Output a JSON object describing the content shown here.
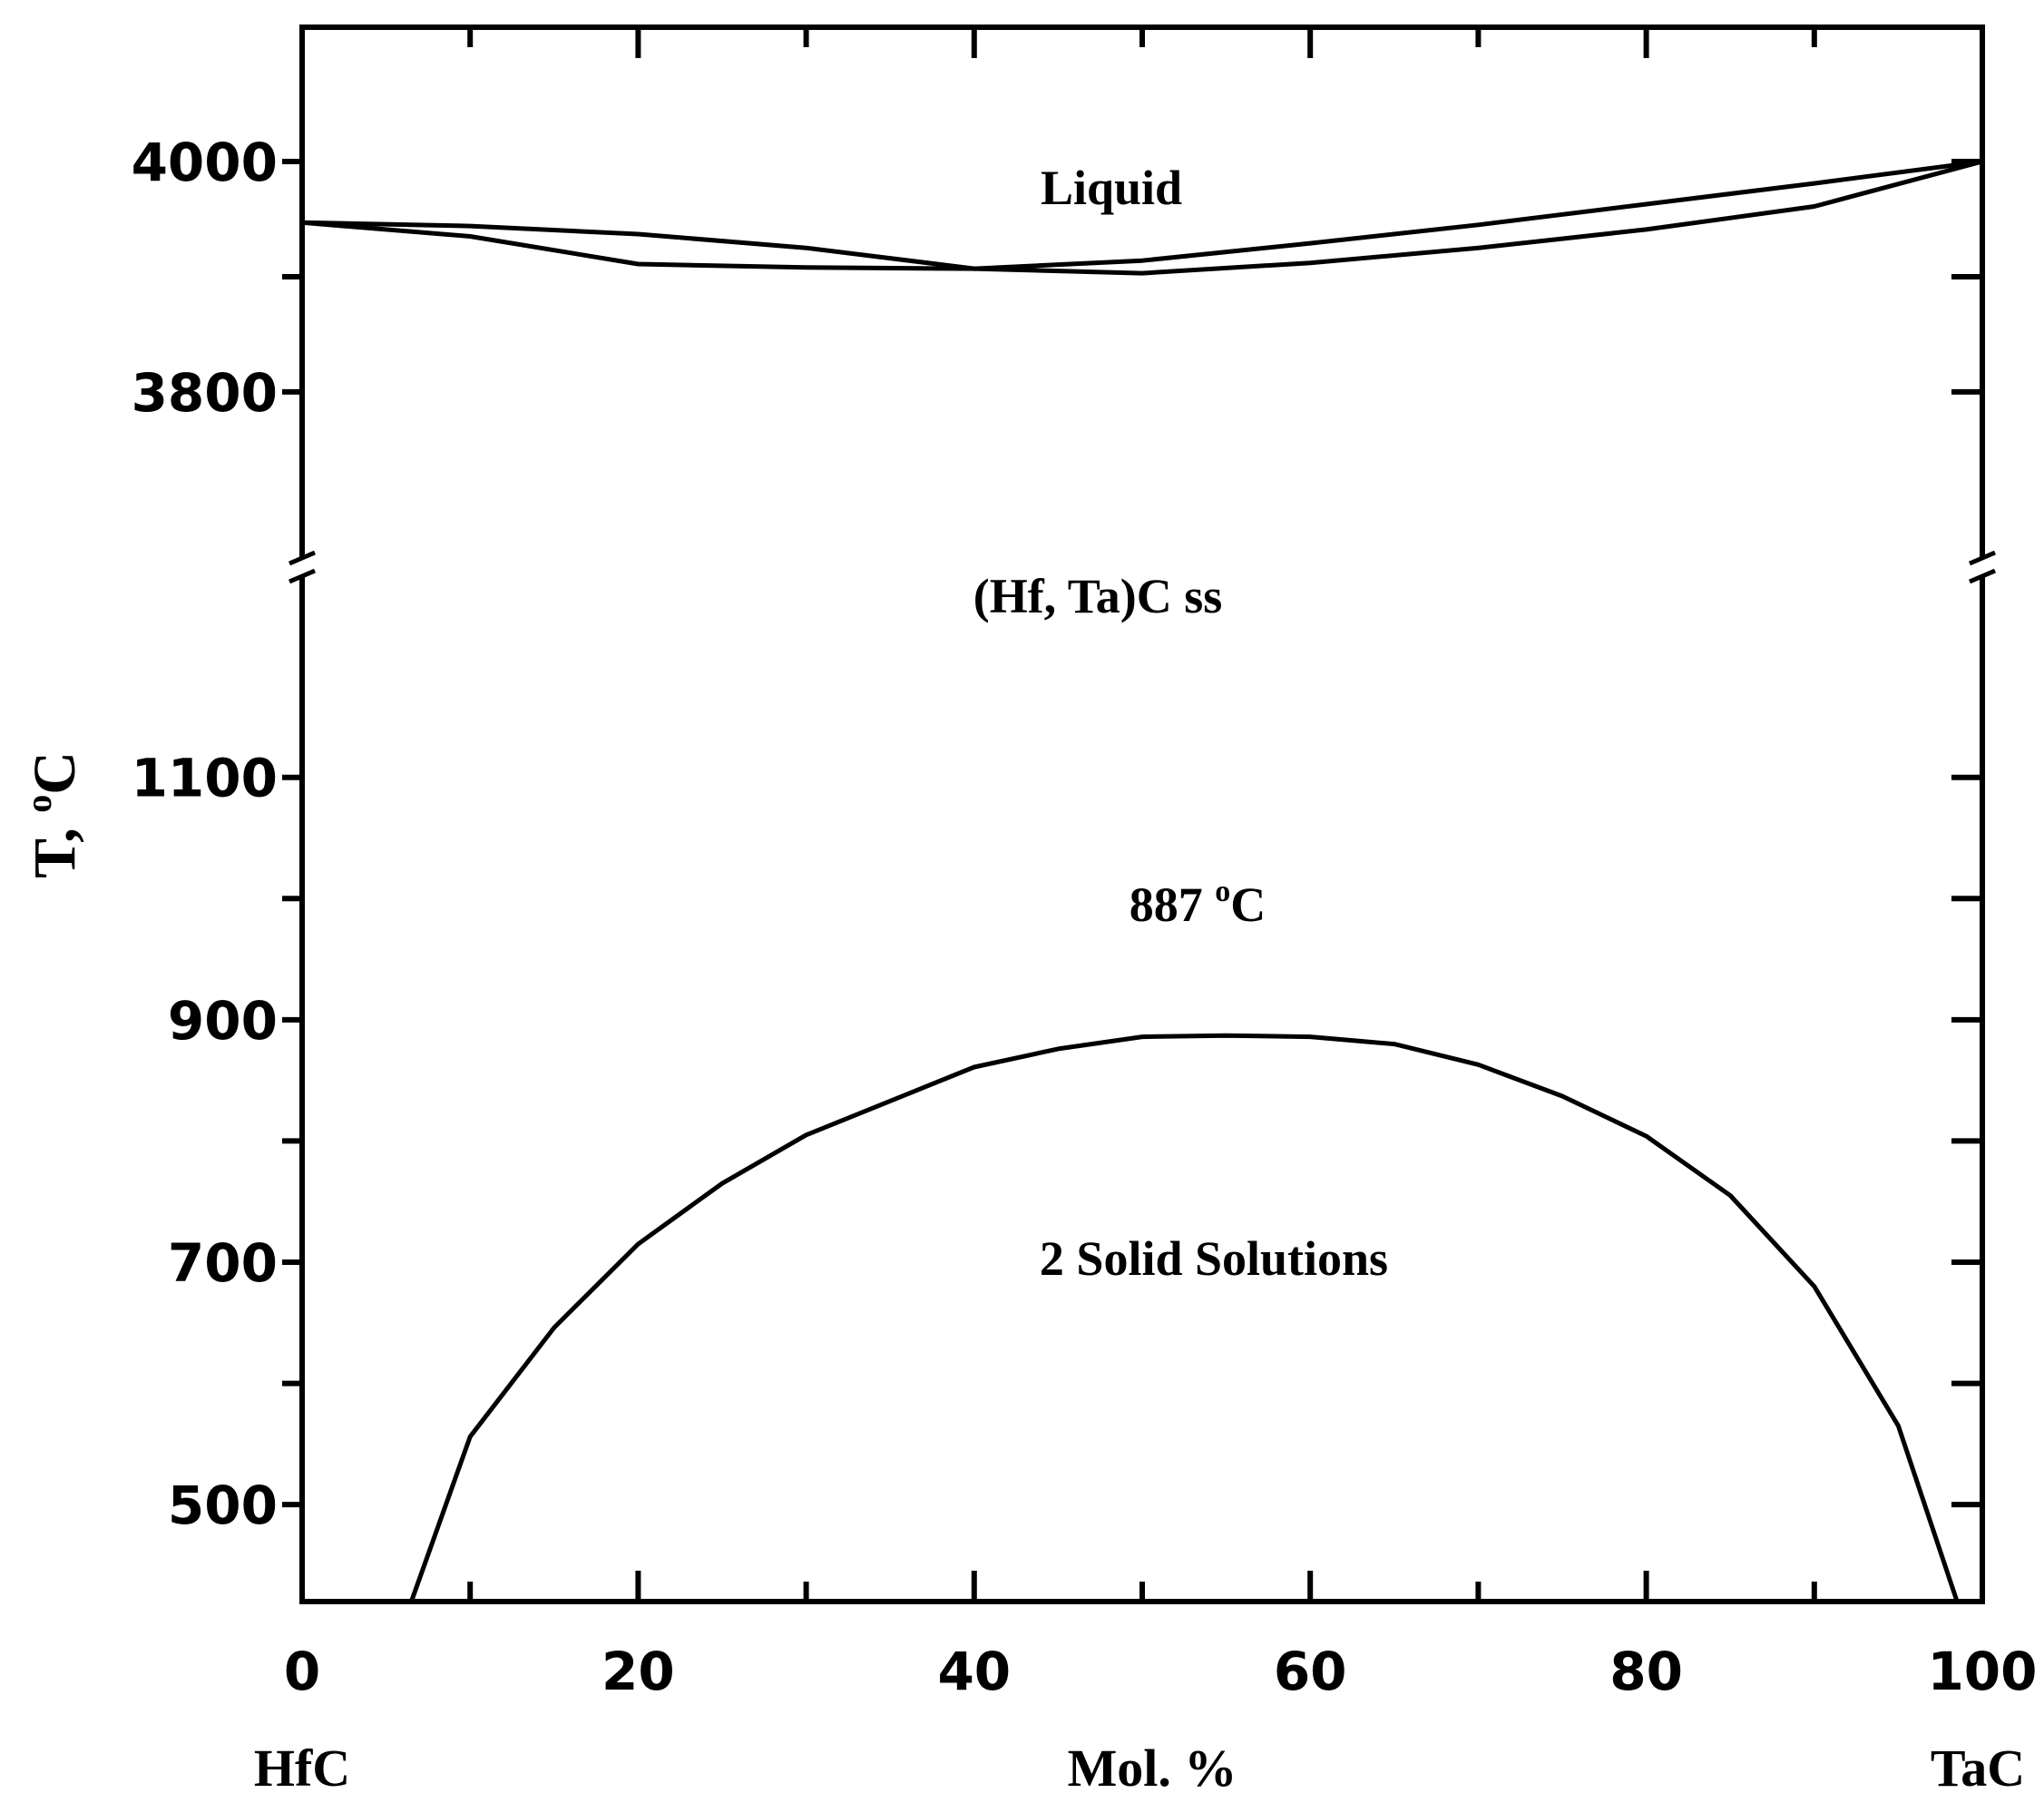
{
  "chart_data": {
    "type": "line",
    "title": "",
    "xlabel": "Mol. %",
    "ylabel": "T, ",
    "ylabel_sup": "o",
    "ylabel_unit": "C",
    "xlim": [
      0,
      100
    ],
    "x_ticks": [
      0,
      20,
      40,
      60,
      80,
      100
    ],
    "x_minor_ticks": [
      10,
      30,
      50,
      70,
      90
    ],
    "x_endpoints": {
      "left": "HfC",
      "right": "TaC"
    },
    "y_axis_break": true,
    "y_segments": [
      {
        "ylim": [
          420,
          1120
        ],
        "ticks": [
          500,
          700,
          900,
          1100
        ],
        "minor_ticks": [
          600,
          800,
          1000
        ]
      },
      {
        "ylim": [
          3770,
          4000
        ],
        "ticks": [
          3800,
          4000
        ],
        "minor_ticks": [
          3900
        ]
      }
    ],
    "series": [
      {
        "role": "liquidus",
        "x": [
          0,
          10,
          20,
          30,
          40,
          50,
          60,
          70,
          80,
          90,
          100
        ],
        "y": [
          3947,
          3944,
          3937,
          3925,
          3907,
          3914,
          3929,
          3945,
          3963,
          3981,
          4000
        ]
      },
      {
        "role": "solidus",
        "x": [
          0,
          10,
          20,
          30,
          40,
          50,
          60,
          70,
          80,
          90,
          100
        ],
        "y": [
          3947,
          3935,
          3911,
          3908,
          3907,
          3903,
          3912,
          3925,
          3941,
          3961,
          4000
        ]
      },
      {
        "role": "miscibility gap",
        "x": [
          6.5,
          10,
          15,
          20,
          25,
          30,
          40,
          45,
          50,
          55,
          60,
          65,
          70,
          75,
          80,
          85,
          90,
          95,
          98.5
        ],
        "y": [
          420,
          556,
          646,
          715,
          765,
          805,
          861,
          876,
          886,
          887,
          886,
          880,
          863,
          837,
          804,
          755,
          680,
          565,
          420
        ]
      }
    ],
    "annotations": {
      "liquid": "Liquid",
      "solid_solution": "(Hf, Ta)C ss",
      "peak_value": "887 ",
      "peak_sup": "o",
      "peak_unit": "C",
      "two_phase": "2 Solid Solutions"
    },
    "grid": false,
    "legend": "none",
    "line_color": "#000000"
  }
}
